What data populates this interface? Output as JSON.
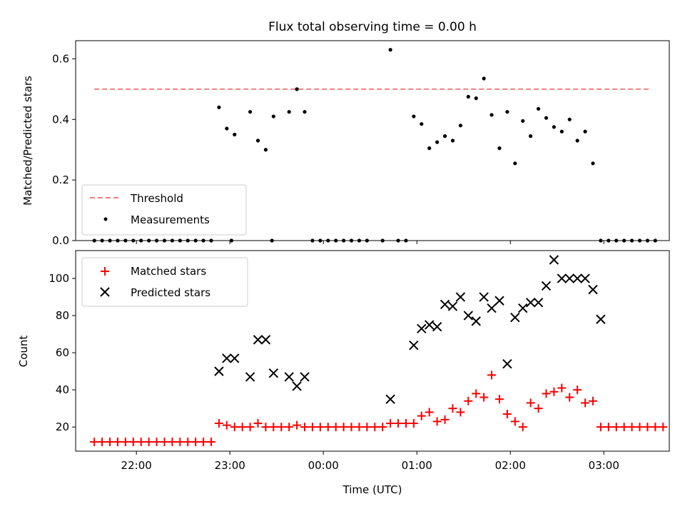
{
  "chart_data": [
    {
      "type": "scatter",
      "title": "Flux total observing time = 0.00 h",
      "ylabel": "Matched/Predicted stars",
      "xlim": [
        "21:21",
        "03:42"
      ],
      "ylim": [
        0,
        0.66
      ],
      "yticks": [
        0.0,
        0.2,
        0.4,
        0.6
      ],
      "ytick_labels": [
        "0.0",
        "0.2",
        "0.4",
        "0.6"
      ],
      "grid": false,
      "legend_position": "lower-left",
      "threshold": {
        "name": "Threshold",
        "value": 0.5,
        "x_range": [
          "21:33",
          "03:30"
        ],
        "color": "#f08080"
      },
      "series": [
        {
          "name": "Measurements",
          "color": "#000000",
          "marker": "dot",
          "points": [
            [
              "21:33",
              0
            ],
            [
              "21:38",
              0
            ],
            [
              "21:43",
              0
            ],
            [
              "21:48",
              0
            ],
            [
              "21:53",
              0
            ],
            [
              "21:58",
              0
            ],
            [
              "22:03",
              0
            ],
            [
              "22:08",
              0
            ],
            [
              "22:13",
              0
            ],
            [
              "22:18",
              0
            ],
            [
              "22:23",
              0
            ],
            [
              "22:28",
              0
            ],
            [
              "22:33",
              0
            ],
            [
              "22:38",
              0
            ],
            [
              "22:43",
              0
            ],
            [
              "22:48",
              0
            ],
            [
              "22:53",
              0.44
            ],
            [
              "22:58",
              0.37
            ],
            [
              "23:03",
              0.35
            ],
            [
              "23:01",
              0
            ],
            [
              "23:13",
              0.425
            ],
            [
              "23:18",
              0.33
            ],
            [
              "23:23",
              0.3
            ],
            [
              "23:28",
              0.41
            ],
            [
              "23:27",
              0
            ],
            [
              "23:38",
              0.425
            ],
            [
              "23:43",
              0.5
            ],
            [
              "23:48",
              0.425
            ],
            [
              "23:53",
              0
            ],
            [
              "23:58",
              0
            ],
            [
              "00:03",
              0
            ],
            [
              "00:08",
              0
            ],
            [
              "00:13",
              0
            ],
            [
              "00:18",
              0
            ],
            [
              "00:23",
              0
            ],
            [
              "00:28",
              0
            ],
            [
              "00:43",
              0.63
            ],
            [
              "00:38",
              0
            ],
            [
              "00:48",
              0
            ],
            [
              "00:53",
              0
            ],
            [
              "00:58",
              0.41
            ],
            [
              "01:03",
              0.385
            ],
            [
              "01:08",
              0.305
            ],
            [
              "01:13",
              0.325
            ],
            [
              "01:18",
              0.345
            ],
            [
              "01:23",
              0.33
            ],
            [
              "01:28",
              0.38
            ],
            [
              "01:33",
              0.475
            ],
            [
              "01:38",
              0.47
            ],
            [
              "01:43",
              0.535
            ],
            [
              "01:48",
              0.415
            ],
            [
              "01:53",
              0.305
            ],
            [
              "01:58",
              0.425
            ],
            [
              "02:03",
              0.255
            ],
            [
              "02:08",
              0.395
            ],
            [
              "02:13",
              0.345
            ],
            [
              "02:18",
              0.435
            ],
            [
              "02:23",
              0.405
            ],
            [
              "02:28",
              0.375
            ],
            [
              "02:33",
              0.36
            ],
            [
              "02:38",
              0.4
            ],
            [
              "02:43",
              0.33
            ],
            [
              "02:48",
              0.36
            ],
            [
              "02:53",
              0.255
            ],
            [
              "02:58",
              0
            ],
            [
              "03:03",
              0
            ],
            [
              "03:08",
              0
            ],
            [
              "03:13",
              0
            ],
            [
              "03:18",
              0
            ],
            [
              "03:23",
              0
            ],
            [
              "03:28",
              0
            ],
            [
              "03:33",
              0
            ]
          ]
        }
      ]
    },
    {
      "type": "scatter",
      "xlabel": "Time (UTC)",
      "ylabel": "Count",
      "xlim": [
        "21:21",
        "03:42"
      ],
      "ylim": [
        7,
        115
      ],
      "xticks": [
        "22:00",
        "23:00",
        "00:00",
        "01:00",
        "02:00",
        "03:00"
      ],
      "xtick_labels": [
        "22:00",
        "23:00",
        "00:00",
        "01:00",
        "02:00",
        "03:00"
      ],
      "yticks": [
        20,
        40,
        60,
        80,
        100
      ],
      "ytick_labels": [
        "20",
        "40",
        "60",
        "80",
        "100"
      ],
      "grid": false,
      "legend_position": "upper-left",
      "series": [
        {
          "name": "Matched stars",
          "color": "#ff0000",
          "marker": "plus",
          "points": [
            [
              "21:33",
              12
            ],
            [
              "21:38",
              12
            ],
            [
              "21:43",
              12
            ],
            [
              "21:48",
              12
            ],
            [
              "21:53",
              12
            ],
            [
              "21:58",
              12
            ],
            [
              "22:03",
              12
            ],
            [
              "22:08",
              12
            ],
            [
              "22:13",
              12
            ],
            [
              "22:18",
              12
            ],
            [
              "22:23",
              12
            ],
            [
              "22:28",
              12
            ],
            [
              "22:33",
              12
            ],
            [
              "22:38",
              12
            ],
            [
              "22:43",
              12
            ],
            [
              "22:48",
              12
            ],
            [
              "22:53",
              22
            ],
            [
              "22:58",
              21
            ],
            [
              "23:03",
              20
            ],
            [
              "23:08",
              20
            ],
            [
              "23:13",
              20
            ],
            [
              "23:18",
              22
            ],
            [
              "23:23",
              20
            ],
            [
              "23:28",
              20
            ],
            [
              "23:33",
              20
            ],
            [
              "23:38",
              20
            ],
            [
              "23:43",
              21
            ],
            [
              "23:48",
              20
            ],
            [
              "23:53",
              20
            ],
            [
              "23:58",
              20
            ],
            [
              "00:03",
              20
            ],
            [
              "00:08",
              20
            ],
            [
              "00:13",
              20
            ],
            [
              "00:18",
              20
            ],
            [
              "00:23",
              20
            ],
            [
              "00:28",
              20
            ],
            [
              "00:33",
              20
            ],
            [
              "00:38",
              20
            ],
            [
              "00:43",
              22
            ],
            [
              "00:48",
              22
            ],
            [
              "00:53",
              22
            ],
            [
              "00:58",
              22
            ],
            [
              "01:03",
              26
            ],
            [
              "01:08",
              28
            ],
            [
              "01:13",
              23
            ],
            [
              "01:18",
              24
            ],
            [
              "01:23",
              30
            ],
            [
              "01:28",
              28
            ],
            [
              "01:33",
              34
            ],
            [
              "01:38",
              38
            ],
            [
              "01:43",
              36
            ],
            [
              "01:48",
              48
            ],
            [
              "01:53",
              35
            ],
            [
              "01:58",
              27
            ],
            [
              "02:03",
              23
            ],
            [
              "02:08",
              20
            ],
            [
              "02:13",
              33
            ],
            [
              "02:18",
              30
            ],
            [
              "02:23",
              38
            ],
            [
              "02:28",
              39
            ],
            [
              "02:33",
              41
            ],
            [
              "02:38",
              36
            ],
            [
              "02:43",
              40
            ],
            [
              "02:48",
              33
            ],
            [
              "02:53",
              34
            ],
            [
              "02:58",
              20
            ],
            [
              "03:03",
              20
            ],
            [
              "03:08",
              20
            ],
            [
              "03:13",
              20
            ],
            [
              "03:18",
              20
            ],
            [
              "03:23",
              20
            ],
            [
              "03:28",
              20
            ],
            [
              "03:33",
              20
            ],
            [
              "03:38",
              20
            ]
          ]
        },
        {
          "name": "Predicted stars",
          "color": "#000000",
          "marker": "x",
          "points": [
            [
              "22:53",
              50
            ],
            [
              "22:58",
              57
            ],
            [
              "23:03",
              57
            ],
            [
              "23:13",
              47
            ],
            [
              "23:18",
              67
            ],
            [
              "23:23",
              67
            ],
            [
              "23:28",
              49
            ],
            [
              "23:38",
              47
            ],
            [
              "23:43",
              42
            ],
            [
              "23:48",
              47
            ],
            [
              "00:43",
              35
            ],
            [
              "00:58",
              64
            ],
            [
              "01:03",
              73
            ],
            [
              "01:08",
              75
            ],
            [
              "01:13",
              74
            ],
            [
              "01:18",
              86
            ],
            [
              "01:23",
              85
            ],
            [
              "01:28",
              90
            ],
            [
              "01:33",
              80
            ],
            [
              "01:38",
              77
            ],
            [
              "01:43",
              90
            ],
            [
              "01:48",
              84
            ],
            [
              "01:53",
              88
            ],
            [
              "01:58",
              54
            ],
            [
              "02:03",
              79
            ],
            [
              "02:08",
              84
            ],
            [
              "02:13",
              87
            ],
            [
              "02:18",
              87
            ],
            [
              "02:23",
              96
            ],
            [
              "02:28",
              110
            ],
            [
              "02:33",
              100
            ],
            [
              "02:38",
              100
            ],
            [
              "02:43",
              100
            ],
            [
              "02:48",
              100
            ],
            [
              "02:53",
              94
            ],
            [
              "02:58",
              78
            ]
          ]
        }
      ]
    }
  ]
}
